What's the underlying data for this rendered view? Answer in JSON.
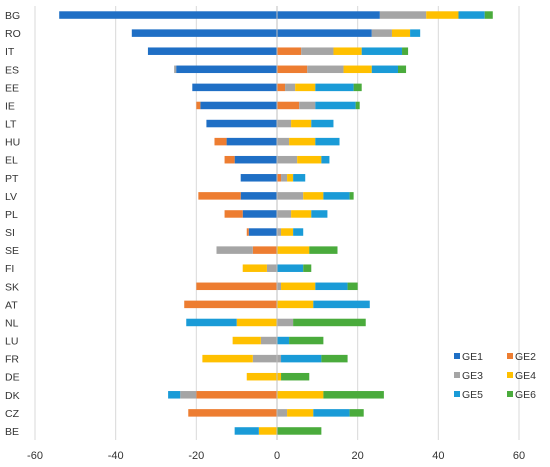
{
  "chart_data": {
    "type": "bar",
    "orientation": "horizontal",
    "stacked": true,
    "diverging": true,
    "xlim": [
      -60,
      60
    ],
    "x_ticks": [
      -60,
      -40,
      -20,
      0,
      20,
      40,
      60
    ],
    "grid": "vertical",
    "legend_position": "bottom-right",
    "categories": [
      "BG",
      "RO",
      "IT",
      "ES",
      "EE",
      "IE",
      "LT",
      "HU",
      "EL",
      "PT",
      "LV",
      "PL",
      "SI",
      "SE",
      "FI",
      "SK",
      "AT",
      "NL",
      "LU",
      "FR",
      "DE",
      "DK",
      "CZ",
      "BE"
    ],
    "series": [
      {
        "name": "GE1",
        "color": "#1f6fc5",
        "neg": [
          -54,
          -36,
          -32,
          -25,
          -21,
          -19,
          -17.5,
          -12.5,
          -10.5,
          -9,
          -9,
          -8.5,
          -7,
          0,
          0,
          0,
          0,
          0,
          0,
          0,
          0,
          0,
          0,
          0
        ],
        "pos": [
          25.5,
          23.5,
          0,
          0,
          0,
          0,
          0,
          0,
          0,
          0,
          0,
          0,
          0,
          0,
          0,
          0,
          0,
          0,
          0,
          0,
          0,
          0,
          0,
          0
        ]
      },
      {
        "name": "GE2",
        "color": "#ed7d31",
        "neg": [
          0,
          0,
          0,
          0,
          0,
          -1,
          0,
          -3,
          -2.5,
          0,
          -10.5,
          -4.5,
          -0.5,
          -6,
          0,
          -20,
          -23,
          0,
          0,
          0,
          0,
          -20,
          -22,
          0
        ],
        "pos": [
          0,
          0,
          6,
          7.5,
          2,
          5.5,
          0,
          0,
          0,
          1,
          0,
          0,
          0,
          0,
          0,
          0,
          0,
          0,
          0,
          0,
          0,
          0,
          0,
          0
        ]
      },
      {
        "name": "GE3",
        "color": "#a5a5a5",
        "neg": [
          0,
          0,
          0,
          -0.5,
          0,
          0,
          0,
          0,
          0,
          0,
          0,
          0,
          0,
          -9,
          -2.5,
          0,
          0,
          0,
          -4,
          -6,
          0,
          -4,
          0,
          0
        ],
        "pos": [
          11.5,
          5,
          8,
          9,
          2.5,
          4,
          3.5,
          3,
          5,
          1.5,
          6.5,
          3.5,
          1,
          0,
          0,
          1,
          0,
          4,
          0,
          1,
          0,
          0,
          2.5,
          0
        ]
      },
      {
        "name": "GE4",
        "color": "#ffc000",
        "neg": [
          0,
          0,
          0,
          0,
          0,
          0,
          0,
          0,
          0,
          0,
          0,
          0,
          0,
          0,
          -6,
          0,
          0,
          -10,
          -7,
          -12.5,
          -7.5,
          0,
          0,
          -4.5
        ],
        "pos": [
          8,
          4.5,
          7,
          7,
          5,
          0,
          5,
          6.5,
          6,
          1.5,
          5,
          5,
          3,
          8,
          0,
          8.5,
          9,
          0,
          0,
          0,
          1,
          11.5,
          6.5,
          0
        ]
      },
      {
        "name": "GE5",
        "color": "#1a9bd7",
        "neg": [
          0,
          0,
          0,
          0,
          0,
          0,
          0,
          0,
          0,
          0,
          0,
          0,
          0,
          0,
          0,
          0,
          0,
          -12.5,
          0,
          0,
          0,
          -3,
          0,
          -6
        ],
        "pos": [
          6.5,
          2.5,
          10,
          6.5,
          9.5,
          10,
          5.5,
          6,
          2,
          3,
          6.5,
          4,
          2.5,
          0,
          6.5,
          8,
          14,
          0,
          3,
          10,
          0,
          0,
          9,
          0
        ]
      },
      {
        "name": "GE6",
        "color": "#4aab3c",
        "neg": [
          0,
          0,
          0,
          0,
          0,
          0,
          0,
          0,
          0,
          0,
          0,
          0,
          0,
          0,
          0,
          0,
          0,
          0,
          0,
          0,
          0,
          0,
          0,
          0
        ],
        "pos": [
          2,
          0,
          1.5,
          2,
          2,
          1,
          0,
          0,
          0,
          0,
          1,
          0,
          0,
          7,
          2,
          2.5,
          0,
          18,
          8.5,
          6.5,
          7,
          15,
          3.5,
          11
        ]
      }
    ]
  }
}
